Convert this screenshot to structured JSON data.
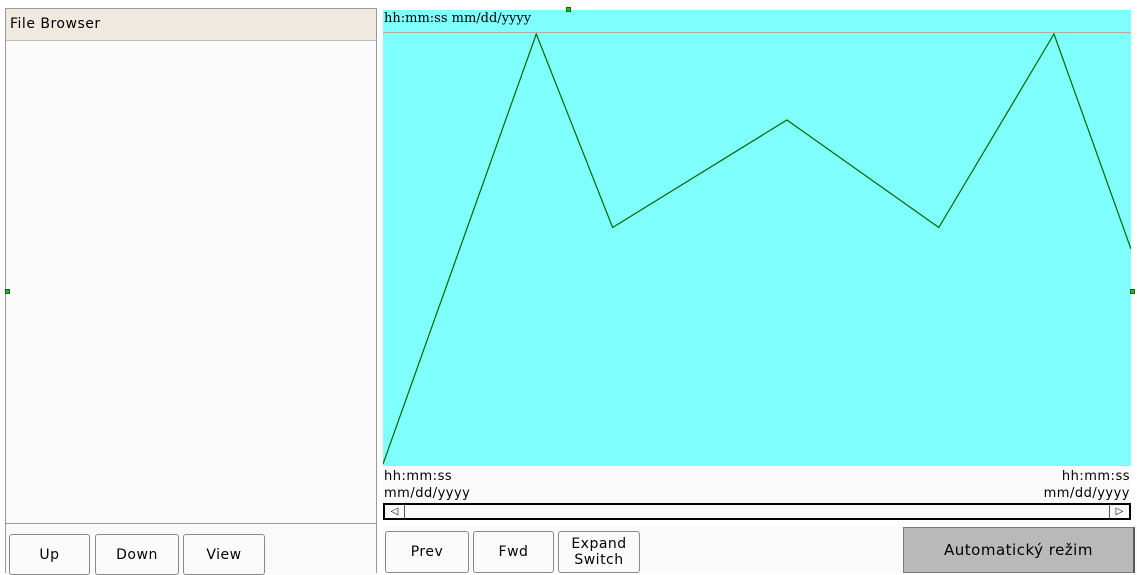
{
  "file_browser": {
    "title": "File Browser",
    "buttons": {
      "up": "Up",
      "down": "Down",
      "view": "View"
    }
  },
  "chart": {
    "top_label": "hh:mm:ss  mm/dd/yyyy",
    "left_time": "hh:mm:ss",
    "left_date": "mm/dd/yyyy",
    "right_time": "hh:mm:ss",
    "right_date": "mm/dd/yyyy",
    "scroll_left_glyph": "◁",
    "scroll_right_glyph": "▷"
  },
  "chart_controls": {
    "prev": "Prev",
    "fwd": "Fwd",
    "expand_line1": "Expand",
    "expand_line2": "Switch"
  },
  "mode_button": "Automatický režim",
  "colors": {
    "chart_background": "#80ffff",
    "trend_line": "#006600",
    "mode_button_bg": "#b9b9b9",
    "handle": "#22bb22"
  },
  "chart_data": {
    "type": "line",
    "grid": false,
    "series": [
      {
        "values": [
          0.0,
          1.0,
          0.55,
          0.8,
          0.55,
          1.0,
          0.5
        ]
      }
    ],
    "x": [
      0,
      0.205,
      0.307,
      0.54,
      0.743,
      0.897,
      1.0
    ],
    "ylim": [
      0,
      1
    ]
  }
}
